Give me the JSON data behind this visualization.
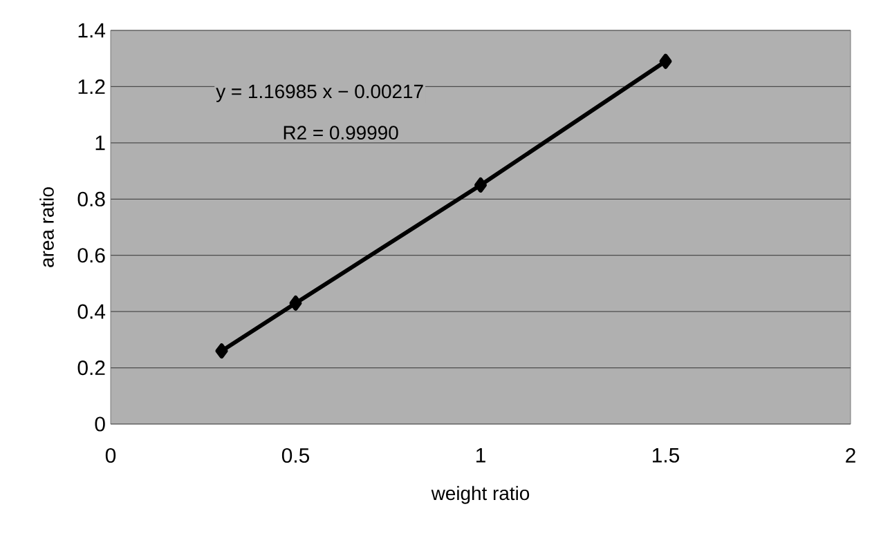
{
  "chart_data": {
    "type": "line",
    "xlabel": "weight ratio",
    "ylabel": "area ratio",
    "x": [
      0.3,
      0.5,
      1,
      1.5
    ],
    "series": [
      {
        "color": "#000000",
        "values": [
          0.26,
          0.43,
          0.85,
          1.29
        ]
      }
    ],
    "xlim": [
      0,
      2
    ],
    "ylim": [
      0,
      1.4
    ],
    "xticks": [
      0,
      0.5,
      1,
      1.5,
      2
    ],
    "yticks": [
      0,
      0.2,
      0.4,
      0.6,
      0.8,
      1,
      1.2,
      1.4
    ],
    "grid": "y",
    "marker": "diamond",
    "line_style": "solid",
    "annotations": [
      "y = 1.16985 x − 0.00217",
      "R2 = 0.99990"
    ]
  }
}
